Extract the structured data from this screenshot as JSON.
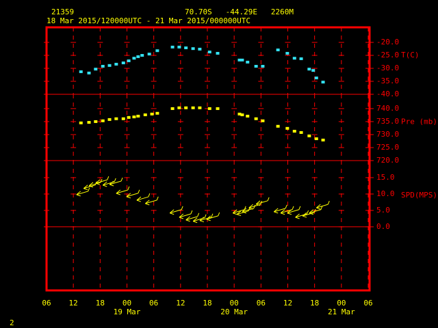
{
  "header": {
    "station": "21359",
    "location": "70.70S   -44.29E   2260M",
    "period": "18 Mar 2015/120000UTC - 21 Mar 2015/000000UTC"
  },
  "footer": "2",
  "chart_data": [
    {
      "type": "scatter",
      "y_label": "T(C)",
      "color": "#33e0f0",
      "x": [
        7.7,
        9.5,
        11.0,
        12.6,
        14.1,
        15.6,
        17.2,
        18.4,
        19.6,
        20.5,
        21.4,
        23.0,
        24.8,
        28.2,
        29.7,
        31.2,
        32.8,
        34.3,
        36.5,
        38.3,
        43.2,
        43.8,
        45.0,
        46.9,
        48.4,
        51.8,
        53.9,
        55.5,
        57.0,
        58.8,
        59.7,
        60.4,
        61.9
      ],
      "values": [
        -31.3,
        -31.8,
        -30.3,
        -29.2,
        -28.9,
        -28.4,
        -27.9,
        -27.1,
        -26.1,
        -25.5,
        -25.0,
        -24.5,
        -23.2,
        -21.8,
        -21.8,
        -22.1,
        -22.4,
        -22.6,
        -23.7,
        -24.2,
        -26.8,
        -26.8,
        -27.6,
        -29.2,
        -29.2,
        -22.9,
        -24.2,
        -26.1,
        -26.3,
        -30.3,
        -30.8,
        -33.7,
        -35.3
      ],
      "xlim": [
        0,
        72
      ],
      "ylim": [
        -40,
        -14.2
      ],
      "yticks": [
        {
          "value": -20,
          "label": "-20.0"
        },
        {
          "value": -25,
          "label": "-25.0"
        },
        {
          "value": -30,
          "label": "-30.0"
        },
        {
          "value": -35,
          "label": "-35.0"
        },
        {
          "value": -40,
          "label": "-40.0"
        }
      ]
    },
    {
      "type": "scatter",
      "y_label": "Pre (mb)",
      "color": "#ffff00",
      "x": [
        7.7,
        9.5,
        11.0,
        12.6,
        14.1,
        15.6,
        17.2,
        18.4,
        19.6,
        20.5,
        22.1,
        23.6,
        24.8,
        28.2,
        29.7,
        31.2,
        32.8,
        34.3,
        36.5,
        38.3,
        43.2,
        43.8,
        45.0,
        46.9,
        48.4,
        51.8,
        53.9,
        55.5,
        57.0,
        58.8,
        60.4,
        61.9
      ],
      "values": [
        734.5,
        734.7,
        735.0,
        735.3,
        735.8,
        736.1,
        736.1,
        736.6,
        736.8,
        737.1,
        737.6,
        737.9,
        738.2,
        740.0,
        740.3,
        740.3,
        740.3,
        740.3,
        740.0,
        740.0,
        737.9,
        737.6,
        737.1,
        736.1,
        735.3,
        733.2,
        732.4,
        731.3,
        730.8,
        729.5,
        728.4,
        727.9
      ],
      "xlim": [
        0,
        72
      ],
      "ylim": [
        720,
        745.5
      ],
      "yticks": [
        {
          "value": 740,
          "label": "740.0"
        },
        {
          "value": 735,
          "label": "735.0"
        },
        {
          "value": 730,
          "label": "730.0"
        },
        {
          "value": 725,
          "label": "725.0"
        },
        {
          "value": 720,
          "label": "720.0"
        }
      ]
    },
    {
      "type": "wind",
      "y_label": "SPD(MPS)",
      "color": "#ffff00",
      "x": [
        6.7,
        8.3,
        9.5,
        11.0,
        12.6,
        14.1,
        15.6,
        17.9,
        20.2,
        22.1,
        27.6,
        29.7,
        31.2,
        32.8,
        34.3,
        35.8,
        41.7,
        42.6,
        43.8,
        45.3,
        46.9,
        50.9,
        52.4,
        53.9,
        55.7,
        57.3,
        58.8,
        60.4
      ],
      "values": [
        9.8,
        11.7,
        12.5,
        13.3,
        12.7,
        12.9,
        10.2,
        9.2,
        8.1,
        7.1,
        4.2,
        2.9,
        2.1,
        1.7,
        1.9,
        2.3,
        4.2,
        3.8,
        4.6,
        5.8,
        6.9,
        4.6,
        4.2,
        4.2,
        2.9,
        3.3,
        4.2,
        5.8
      ],
      "xlim": [
        0,
        72
      ],
      "ylim": [
        -19.4,
        20.2
      ],
      "yticks": [
        {
          "value": 15,
          "label": "15.0"
        },
        {
          "value": 10,
          "label": "10.0"
        },
        {
          "value": 5,
          "label": "5.0"
        },
        {
          "value": 0,
          "label": "0.0"
        }
      ],
      "xticks": [
        {
          "value": 0,
          "label": "06"
        },
        {
          "value": 6,
          "label": "12"
        },
        {
          "value": 12,
          "label": "18"
        },
        {
          "value": 18,
          "label": "00"
        },
        {
          "value": 24,
          "label": "06"
        },
        {
          "value": 30,
          "label": "12"
        },
        {
          "value": 36,
          "label": "18"
        },
        {
          "value": 42,
          "label": "00"
        },
        {
          "value": 48,
          "label": "06"
        },
        {
          "value": 54,
          "label": "12"
        },
        {
          "value": 60,
          "label": "18"
        },
        {
          "value": 66,
          "label": "00"
        },
        {
          "value": 72,
          "label": "06"
        }
      ],
      "annotations": [
        {
          "x": 18,
          "text": "19 Mar"
        },
        {
          "x": 42,
          "text": "20 Mar"
        },
        {
          "x": 66,
          "text": "21 Mar"
        }
      ]
    }
  ]
}
